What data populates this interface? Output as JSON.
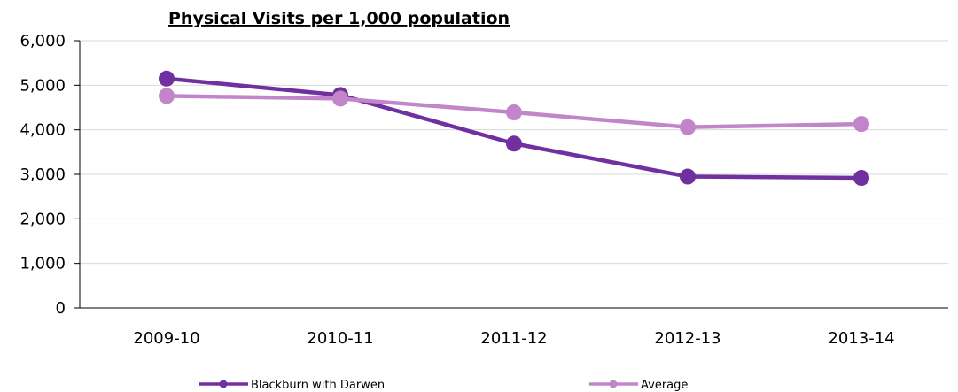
{
  "chart_data": {
    "type": "line",
    "title": "Physical Visits per 1,000 population",
    "xlabel": "",
    "ylabel": "",
    "categories": [
      "2009-10",
      "2010-11",
      "2011-12",
      "2012-13",
      "2013-14"
    ],
    "ylim": [
      0,
      6000
    ],
    "yticks": [
      0,
      1000,
      2000,
      3000,
      4000,
      5000,
      6000
    ],
    "ytick_labels": [
      "0",
      "1,000",
      "2,000",
      "3,000",
      "4,000",
      "5,000",
      "6,000"
    ],
    "grid": true,
    "legend_position": "bottom",
    "series": [
      {
        "name": "Blackburn with Darwen",
        "color": "#7030a0",
        "values": [
          5150,
          4780,
          3690,
          2950,
          2920
        ]
      },
      {
        "name": "Average",
        "color": "#c285c9",
        "values": [
          4760,
          4700,
          4390,
          4060,
          4130
        ]
      }
    ]
  }
}
